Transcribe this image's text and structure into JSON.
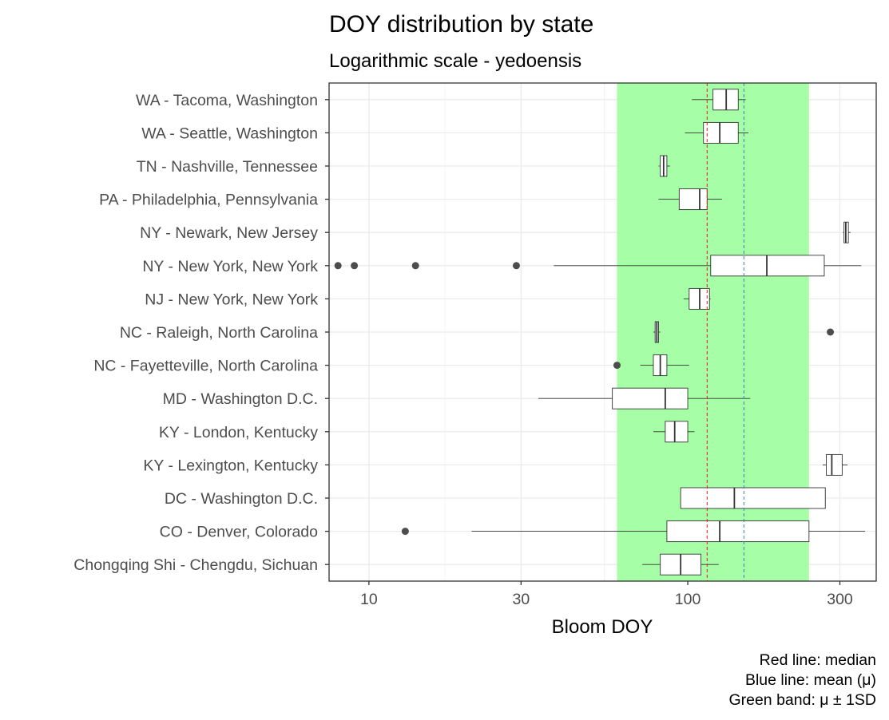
{
  "chart_data": {
    "type": "boxplot",
    "title": "DOY distribution by state",
    "subtitle": "Logarithmic scale - yedoensis",
    "xlabel": "Bloom DOY",
    "x_scale": "log10",
    "x_range": [
      7.5,
      390
    ],
    "x_ticks": [
      10,
      30,
      100,
      300
    ],
    "x_tick_labels": [
      "10",
      "30",
      "100",
      "300"
    ],
    "grid": true,
    "median_line": 115,
    "mean_line": 150,
    "band": [
      60,
      240
    ],
    "colors": {
      "median_line": "#e41a1c",
      "mean_line": "#377eb8",
      "band": "#a6ffa6",
      "box_fill": "#ffffff",
      "box_stroke": "#333333",
      "outlier": "#4d4d4d"
    },
    "caption": [
      "Red line: median",
      "Blue line: mean (μ)",
      "Green band: μ ± 1SD"
    ],
    "categories": [
      {
        "label": "WA - Tacoma, Washington",
        "whisker_low": 103,
        "q1": 120,
        "median": 132,
        "q3": 144,
        "whisker_high": 152,
        "outliers": []
      },
      {
        "label": "WA - Seattle, Washington",
        "whisker_low": 98,
        "q1": 112,
        "median": 126,
        "q3": 144,
        "whisker_high": 155,
        "outliers": []
      },
      {
        "label": "TN - Nashville, Tennessee",
        "whisker_low": 81,
        "q1": 82,
        "median": 84,
        "q3": 86,
        "whisker_high": 88,
        "outliers": []
      },
      {
        "label": "PA - Philadelphia, Pennsylvania",
        "whisker_low": 81,
        "q1": 94,
        "median": 109,
        "q3": 115,
        "whisker_high": 128,
        "outliers": []
      },
      {
        "label": "NY - Newark, New Jersey",
        "whisker_low": 307,
        "q1": 309,
        "median": 313,
        "q3": 319,
        "whisker_high": 324,
        "outliers": []
      },
      {
        "label": "NY - New York, New York",
        "whisker_low": 38,
        "q1": 118,
        "median": 177,
        "q3": 268,
        "whisker_high": 350,
        "outliers": [
          8,
          9,
          14,
          29
        ]
      },
      {
        "label": "NJ - New York, New York",
        "whisker_low": 97,
        "q1": 101,
        "median": 109,
        "q3": 117,
        "whisker_high": 118,
        "outliers": []
      },
      {
        "label": "NC - Raleigh, North Carolina",
        "whisker_low": 78,
        "q1": 79,
        "median": 80,
        "q3": 81,
        "whisker_high": 82,
        "outliers": [
          280
        ]
      },
      {
        "label": "NC - Fayetteville, North Carolina",
        "whisker_low": 71,
        "q1": 78,
        "median": 82,
        "q3": 86,
        "whisker_high": 101,
        "outliers": [
          60
        ]
      },
      {
        "label": "MD - Washington D.C.",
        "whisker_low": 34,
        "q1": 58,
        "median": 85,
        "q3": 100,
        "whisker_high": 157,
        "outliers": []
      },
      {
        "label": "KY - London, Kentucky",
        "whisker_low": 78,
        "q1": 85,
        "median": 91,
        "q3": 100,
        "whisker_high": 105,
        "outliers": []
      },
      {
        "label": "KY - Lexington, Kentucky",
        "whisker_low": 265,
        "q1": 272,
        "median": 283,
        "q3": 305,
        "whisker_high": 317,
        "outliers": []
      },
      {
        "label": "DC - Washington D.C.",
        "whisker_low": 95,
        "q1": 95,
        "median": 140,
        "q3": 270,
        "whisker_high": 270,
        "outliers": []
      },
      {
        "label": "CO - Denver, Colorado",
        "whisker_low": 21,
        "q1": 86,
        "median": 126,
        "q3": 240,
        "whisker_high": 360,
        "outliers": [
          13
        ]
      },
      {
        "label": "Chongqing Shi - Chengdu, Sichuan",
        "whisker_low": 72,
        "q1": 82,
        "median": 95,
        "q3": 110,
        "whisker_high": 125,
        "outliers": []
      }
    ]
  }
}
